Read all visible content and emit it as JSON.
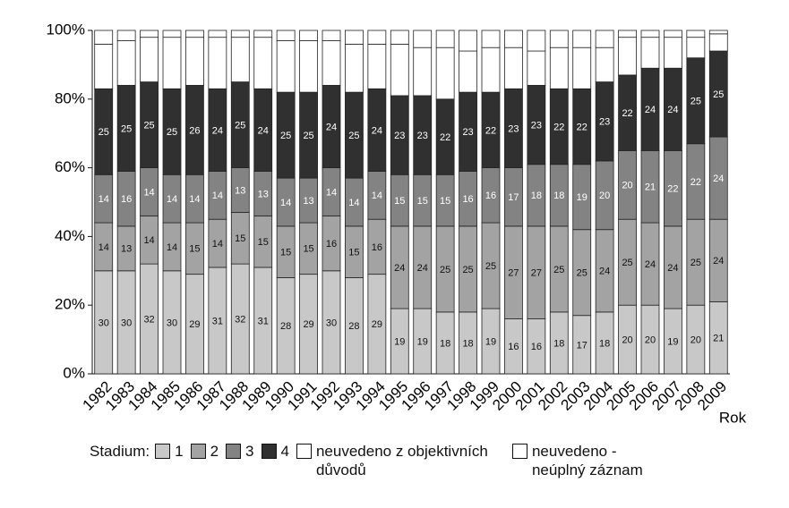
{
  "chart_data": {
    "type": "bar",
    "stacked": true,
    "x_label": "Rok",
    "legend_title": "Stadium:",
    "categories": [
      "1982",
      "1983",
      "1984",
      "1985",
      "1986",
      "1987",
      "1988",
      "1989",
      "1990",
      "1991",
      "1992",
      "1993",
      "1994",
      "1995",
      "1996",
      "1997",
      "1998",
      "1999",
      "2000",
      "2001",
      "2002",
      "2003",
      "2004",
      "2005",
      "2006",
      "2007",
      "2008",
      "2009"
    ],
    "ylim": [
      0,
      100
    ],
    "yticks": [
      {
        "value": 0,
        "label": "0%"
      },
      {
        "value": 20,
        "label": "20%"
      },
      {
        "value": 40,
        "label": "40%"
      },
      {
        "value": 60,
        "label": "60%"
      },
      {
        "value": 80,
        "label": "80%"
      },
      {
        "value": 100,
        "label": "100%"
      }
    ],
    "series": [
      {
        "name": "1",
        "color": "#c8c8c8",
        "show_labels": true,
        "label_color": "#111111",
        "values": [
          30,
          30,
          32,
          30,
          29,
          31,
          32,
          31,
          28,
          29,
          30,
          28,
          29,
          19,
          19,
          18,
          18,
          19,
          16,
          16,
          18,
          17,
          18,
          20,
          20,
          19,
          20,
          21
        ]
      },
      {
        "name": "2",
        "color": "#a3a3a3",
        "show_labels": true,
        "label_color": "#111111",
        "values": [
          14,
          13,
          14,
          14,
          15,
          14,
          15,
          15,
          15,
          15,
          16,
          15,
          16,
          24,
          24,
          25,
          25,
          25,
          27,
          27,
          25,
          25,
          24,
          25,
          24,
          24,
          25,
          24
        ]
      },
      {
        "name": "3",
        "color": "#838383",
        "show_labels": true,
        "label_color": "#ffffff",
        "values": [
          14,
          16,
          14,
          14,
          14,
          14,
          13,
          13,
          14,
          13,
          14,
          14,
          14,
          15,
          15,
          15,
          16,
          16,
          17,
          18,
          18,
          19,
          20,
          20,
          21,
          22,
          22,
          24
        ]
      },
      {
        "name": "4",
        "color": "#303030",
        "show_labels": true,
        "label_color": "#ffffff",
        "values": [
          25,
          25,
          25,
          25,
          26,
          24,
          25,
          24,
          25,
          25,
          24,
          25,
          24,
          23,
          23,
          22,
          23,
          22,
          23,
          23,
          22,
          22,
          23,
          22,
          24,
          24,
          25,
          25
        ]
      },
      {
        "name": "neuvedeno z objektivních důvodů",
        "color": "#ffffff",
        "show_labels": false,
        "values": [
          13,
          13,
          13,
          15,
          14,
          15,
          13,
          15,
          15,
          15,
          13,
          14,
          13,
          15,
          14,
          15,
          12,
          13,
          12,
          10,
          12,
          12,
          10,
          11,
          9,
          9,
          6,
          5
        ]
      },
      {
        "name": "neuvedeno - neúplný záznam",
        "color": "#ffffff",
        "show_labels": false,
        "values": [
          4,
          3,
          2,
          2,
          2,
          2,
          2,
          2,
          3,
          3,
          3,
          4,
          4,
          4,
          5,
          5,
          6,
          5,
          5,
          6,
          5,
          5,
          5,
          2,
          2,
          2,
          2,
          1
        ]
      }
    ]
  }
}
